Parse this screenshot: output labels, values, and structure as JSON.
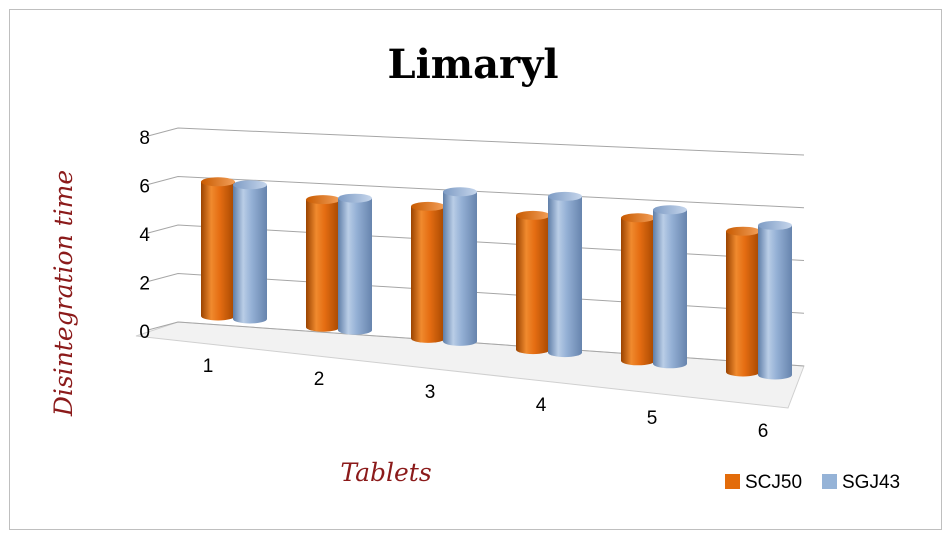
{
  "chart_data": {
    "type": "bar",
    "title": "Limaryl",
    "xlabel": "Tablets",
    "ylabel": "Disintegration time",
    "categories": [
      "1",
      "2",
      "3",
      "4",
      "5",
      "6"
    ],
    "series": [
      {
        "name": "SCJ50",
        "values": [
          6.1,
          5.8,
          6.0,
          6.1,
          6.5,
          6.4
        ],
        "color": "#e36c0a"
      },
      {
        "name": "SGJ43",
        "values": [
          6.1,
          6.0,
          6.8,
          7.1,
          7.0,
          6.8
        ],
        "color": "#95b3d7"
      }
    ],
    "ylim": [
      0,
      8
    ],
    "yticks": [
      "0",
      "2",
      "4",
      "6",
      "8"
    ],
    "grid": true,
    "legend": "bottom-right"
  }
}
